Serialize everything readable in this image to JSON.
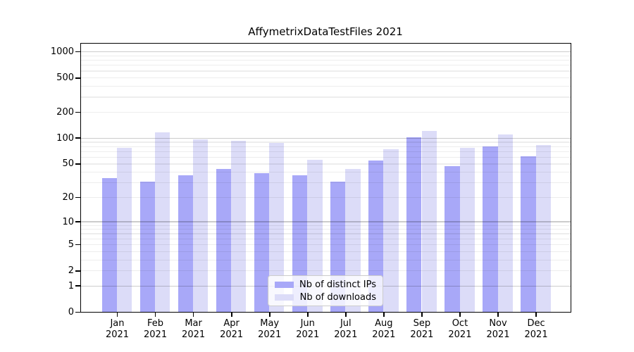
{
  "figure": {
    "background_color": "#ffffff",
    "axes_border_color": "#000000"
  },
  "chart_data": {
    "type": "bar",
    "title": "AffymetrixDataTestFiles 2021",
    "xlabel": "",
    "ylabel": "",
    "categories": [
      "Jan",
      "Feb",
      "Mar",
      "Apr",
      "May",
      "Jun",
      "Jul",
      "Aug",
      "Sep",
      "Oct",
      "Nov",
      "Dec"
    ],
    "year_label": "2021",
    "series": [
      {
        "name": "Nb of distinct IPs",
        "color": "#a8a8f8",
        "values": [
          34,
          31,
          37,
          44,
          39,
          37,
          31,
          55,
          103,
          47,
          80,
          61
        ]
      },
      {
        "name": "Nb of downloads",
        "color": "#dcdcf8",
        "values": [
          78,
          117,
          97,
          93,
          89,
          56,
          44,
          75,
          122,
          78,
          111,
          84
        ]
      }
    ],
    "yscale": "log1p",
    "ylim": [
      0,
      1250
    ],
    "y_ticks": [
      0,
      1,
      2,
      5,
      10,
      20,
      50,
      100,
      200,
      500,
      1000
    ],
    "y_tick_labels": [
      "0",
      "1",
      "2",
      "5",
      "10",
      "20",
      "50",
      "100",
      "200",
      "500",
      "1000"
    ],
    "grid": {
      "minor_values": [
        2,
        3,
        4,
        5,
        6,
        7,
        8,
        9,
        20,
        30,
        40,
        50,
        60,
        70,
        80,
        90,
        200,
        300,
        400,
        500,
        600,
        700,
        800,
        900
      ],
      "major_values": [
        1,
        10,
        100,
        1000
      ],
      "minor_color": "rgba(0,0,0,0.07)",
      "major_color": "rgba(0,0,0,0.20)"
    },
    "legend": {
      "position": "lower center",
      "entries": [
        "Nb of distinct IPs",
        "Nb of downloads"
      ]
    }
  }
}
